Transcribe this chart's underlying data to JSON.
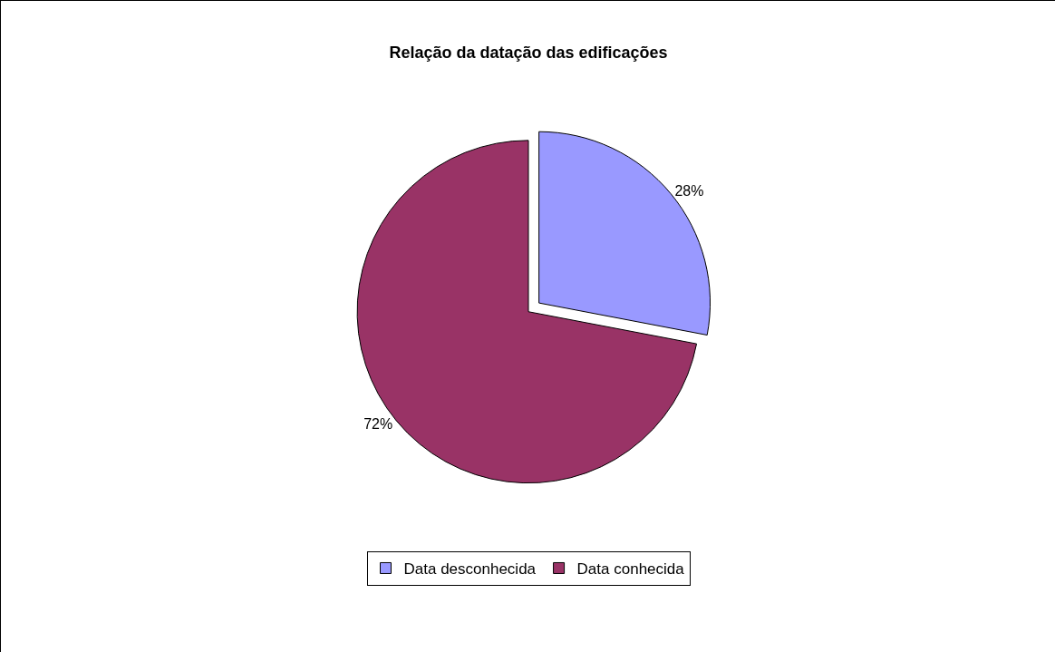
{
  "chart_data": {
    "type": "pie",
    "title": "Relação da datação das edificações",
    "categories": [
      "Data desconhecida",
      "Data conhecida"
    ],
    "values": [
      28,
      72
    ],
    "value_labels": [
      "28%",
      "72%"
    ],
    "colors": [
      "#9999ff",
      "#993366"
    ],
    "legend": "bottom"
  }
}
